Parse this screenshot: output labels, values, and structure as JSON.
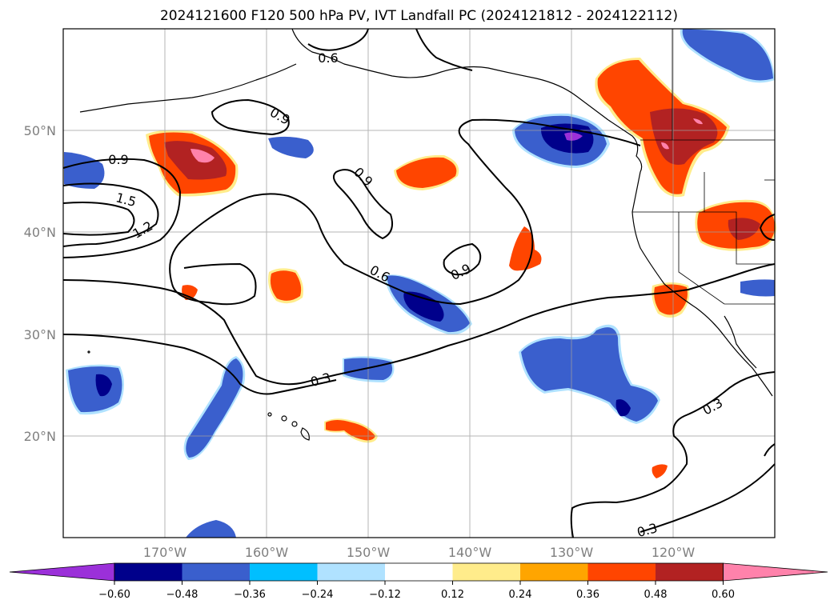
{
  "title": "2024121600 F120 500 hPa PV, IVT Landfall PC (2024121812 - 2024122112)",
  "map": {
    "lon_range": [
      -180,
      -110
    ],
    "lat_range": [
      10,
      60
    ],
    "grid": true,
    "lat_ticks": [
      "20°N",
      "30°N",
      "40°N",
      "50°N"
    ],
    "lon_ticks": [
      "170°W",
      "160°W",
      "150°W",
      "140°W",
      "130°W",
      "120°W"
    ],
    "contour_labels": [
      "0.9",
      "0.9",
      "0.9",
      "0.9",
      "1.5",
      "1.2",
      "0.6",
      "0.3",
      "0.3",
      "0.3",
      "0.6"
    ]
  },
  "colorbar": {
    "ticks": [
      "−0.60",
      "−0.48",
      "−0.36",
      "−0.24",
      "−0.12",
      "0.12",
      "0.24",
      "0.36",
      "0.48",
      "0.60"
    ],
    "colors": [
      "#9b30d9",
      "#00008b",
      "#3a5fcd",
      "#00bfff",
      "#b0e2ff",
      "#ffffff",
      "#ffec8b",
      "#ffa500",
      "#ff4500",
      "#b22222",
      "#ff82ab"
    ]
  },
  "colors": {
    "neg_strong": "#00008b",
    "neg_mid": "#3a5fcd",
    "neg_light": "#00bfff",
    "pos_light": "#ffec8b",
    "pos_mid": "#ff4500",
    "pos_strong": "#b22222",
    "pos_max": "#ff82ab",
    "neg_max": "#9b30d9"
  }
}
